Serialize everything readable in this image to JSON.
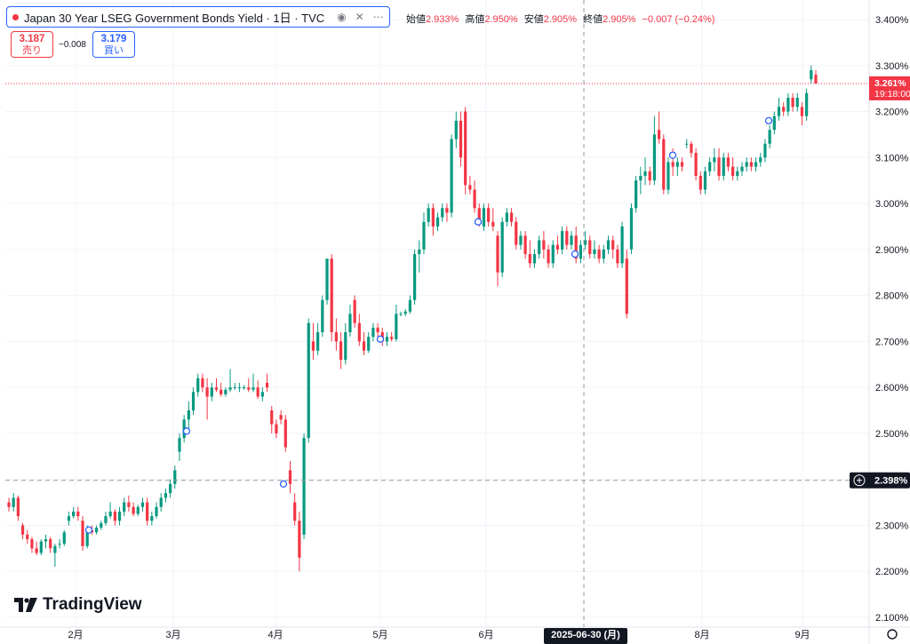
{
  "legend": {
    "title": "Japan 30 Year LSEG Government Bonds Yield · 1日 · TVC",
    "open_label": "始値",
    "open": "2.933%",
    "high_label": "高値",
    "high": "2.950%",
    "low_label": "安値",
    "low": "2.905%",
    "close_label": "終値",
    "close": "2.905%",
    "change": "−0.007 (−0.24%)",
    "icons": [
      "eye-icon",
      "close-icon",
      "more-icon"
    ]
  },
  "quotes": {
    "sell_value": "3.187",
    "sell_label": "売り",
    "spread": "−0.008",
    "buy_value": "3.179",
    "buy_label": "買い"
  },
  "branding": {
    "logo_text": "TradingView"
  },
  "colors": {
    "up": "#089981",
    "down": "#f23645",
    "accent": "#2962ff"
  },
  "chart_data": {
    "type": "candlestick",
    "title": "Japan 30 Year LSEG Government Bonds Yield · 1日 · TVC",
    "ylim": [
      2.1,
      3.42
    ],
    "y_ticks": [
      "3.400%",
      "3.300%",
      "3.200%",
      "3.100%",
      "3.000%",
      "2.900%",
      "2.800%",
      "2.700%",
      "2.600%",
      "2.500%",
      "2.400%",
      "2.300%",
      "2.200%",
      "2.100%"
    ],
    "y_tick_values": [
      3.4,
      3.3,
      3.2,
      3.1,
      3.0,
      2.9,
      2.8,
      2.7,
      2.6,
      2.5,
      2.4,
      2.3,
      2.2,
      2.1
    ],
    "x_labels": [
      {
        "label": "2月",
        "date": "2025-02-01"
      },
      {
        "label": "3月",
        "date": "2025-03-01"
      },
      {
        "label": "4月",
        "date": "2025-04-01"
      },
      {
        "label": "5月",
        "date": "2025-05-01"
      },
      {
        "label": "6月",
        "date": "2025-06-01"
      },
      {
        "label": "8月",
        "date": "2025-08-01"
      },
      {
        "label": "9月",
        "date": "2025-09-01"
      }
    ],
    "crosshair": {
      "date_label": "2025-06-30 (月)",
      "price_label": "2.398%",
      "price": 2.398
    },
    "last_price": {
      "label": "3.261%",
      "countdown": "19:18:00",
      "price": 3.261
    },
    "grid": true,
    "candles": [
      {
        "o": 2.35,
        "h": 2.36,
        "l": 2.33,
        "c": 2.34
      },
      {
        "o": 2.34,
        "h": 2.37,
        "l": 2.33,
        "c": 2.36
      },
      {
        "o": 2.36,
        "h": 2.365,
        "l": 2.31,
        "c": 2.32
      },
      {
        "o": 2.3,
        "h": 2.305,
        "l": 2.27,
        "c": 2.28
      },
      {
        "o": 2.28,
        "h": 2.29,
        "l": 2.26,
        "c": 2.27
      },
      {
        "o": 2.27,
        "h": 2.275,
        "l": 2.24,
        "c": 2.25
      },
      {
        "o": 2.25,
        "h": 2.265,
        "l": 2.235,
        "c": 2.24
      },
      {
        "o": 2.24,
        "h": 2.27,
        "l": 2.235,
        "c": 2.265
      },
      {
        "o": 2.265,
        "h": 2.28,
        "l": 2.25,
        "c": 2.27
      },
      {
        "o": 2.27,
        "h": 2.275,
        "l": 2.24,
        "c": 2.25
      },
      {
        "o": 2.24,
        "h": 2.26,
        "l": 2.21,
        "c": 2.255
      },
      {
        "o": 2.26,
        "h": 2.27,
        "l": 2.25,
        "c": 2.26
      },
      {
        "o": 2.26,
        "h": 2.29,
        "l": 2.255,
        "c": 2.285
      },
      {
        "o": 2.31,
        "h": 2.33,
        "l": 2.3,
        "c": 2.32
      },
      {
        "o": 2.32,
        "h": 2.34,
        "l": 2.315,
        "c": 2.33
      },
      {
        "o": 2.33,
        "h": 2.34,
        "l": 2.31,
        "c": 2.32
      },
      {
        "o": 2.31,
        "h": 2.32,
        "l": 2.245,
        "c": 2.255
      },
      {
        "o": 2.255,
        "h": 2.3,
        "l": 2.25,
        "c": 2.29
      },
      {
        "o": 2.29,
        "h": 2.3,
        "l": 2.28,
        "c": 2.285
      },
      {
        "o": 2.285,
        "h": 2.3,
        "l": 2.28,
        "c": 2.295
      },
      {
        "o": 2.295,
        "h": 2.31,
        "l": 2.29,
        "c": 2.305
      },
      {
        "o": 2.305,
        "h": 2.33,
        "l": 2.3,
        "c": 2.32
      },
      {
        "o": 2.32,
        "h": 2.35,
        "l": 2.315,
        "c": 2.33
      },
      {
        "o": 2.33,
        "h": 2.335,
        "l": 2.3,
        "c": 2.31
      },
      {
        "o": 2.31,
        "h": 2.34,
        "l": 2.3,
        "c": 2.33
      },
      {
        "o": 2.33,
        "h": 2.36,
        "l": 2.32,
        "c": 2.35
      },
      {
        "o": 2.35,
        "h": 2.365,
        "l": 2.33,
        "c": 2.34
      },
      {
        "o": 2.34,
        "h": 2.35,
        "l": 2.32,
        "c": 2.325
      },
      {
        "o": 2.325,
        "h": 2.345,
        "l": 2.32,
        "c": 2.34
      },
      {
        "o": 2.34,
        "h": 2.36,
        "l": 2.33,
        "c": 2.35
      },
      {
        "o": 2.35,
        "h": 2.36,
        "l": 2.3,
        "c": 2.31
      },
      {
        "o": 2.31,
        "h": 2.33,
        "l": 2.3,
        "c": 2.32
      },
      {
        "o": 2.32,
        "h": 2.35,
        "l": 2.315,
        "c": 2.34
      },
      {
        "o": 2.34,
        "h": 2.37,
        "l": 2.33,
        "c": 2.36
      },
      {
        "o": 2.36,
        "h": 2.38,
        "l": 2.35,
        "c": 2.37
      },
      {
        "o": 2.37,
        "h": 2.4,
        "l": 2.36,
        "c": 2.39
      },
      {
        "o": 2.39,
        "h": 2.43,
        "l": 2.38,
        "c": 2.42
      },
      {
        "o": 2.46,
        "h": 2.5,
        "l": 2.44,
        "c": 2.49
      },
      {
        "o": 2.49,
        "h": 2.54,
        "l": 2.48,
        "c": 2.53
      },
      {
        "o": 2.53,
        "h": 2.57,
        "l": 2.5,
        "c": 2.55
      },
      {
        "o": 2.55,
        "h": 2.6,
        "l": 2.54,
        "c": 2.59
      },
      {
        "o": 2.59,
        "h": 2.63,
        "l": 2.58,
        "c": 2.62
      },
      {
        "o": 2.62,
        "h": 2.63,
        "l": 2.59,
        "c": 2.6
      },
      {
        "o": 2.6,
        "h": 2.62,
        "l": 2.53,
        "c": 2.58
      },
      {
        "o": 2.58,
        "h": 2.61,
        "l": 2.57,
        "c": 2.6
      },
      {
        "o": 2.6,
        "h": 2.62,
        "l": 2.59,
        "c": 2.595
      },
      {
        "o": 2.595,
        "h": 2.61,
        "l": 2.58,
        "c": 2.585
      },
      {
        "o": 2.585,
        "h": 2.6,
        "l": 2.58,
        "c": 2.595
      },
      {
        "o": 2.595,
        "h": 2.64,
        "l": 2.59,
        "c": 2.6
      },
      {
        "o": 2.6,
        "h": 2.61,
        "l": 2.595,
        "c": 2.6
      },
      {
        "o": 2.6,
        "h": 2.61,
        "l": 2.59,
        "c": 2.6
      },
      {
        "o": 2.6,
        "h": 2.605,
        "l": 2.595,
        "c": 2.6
      },
      {
        "o": 2.6,
        "h": 2.62,
        "l": 2.59,
        "c": 2.595
      },
      {
        "o": 2.595,
        "h": 2.63,
        "l": 2.59,
        "c": 2.6
      },
      {
        "o": 2.6,
        "h": 2.615,
        "l": 2.575,
        "c": 2.58
      },
      {
        "o": 2.58,
        "h": 2.6,
        "l": 2.57,
        "c": 2.59
      },
      {
        "o": 2.61,
        "h": 2.63,
        "l": 2.59,
        "c": 2.6
      },
      {
        "o": 2.55,
        "h": 2.56,
        "l": 2.5,
        "c": 2.52
      },
      {
        "o": 2.52,
        "h": 2.53,
        "l": 2.49,
        "c": 2.5
      },
      {
        "o": 2.54,
        "h": 2.55,
        "l": 2.52,
        "c": 2.53
      },
      {
        "o": 2.53,
        "h": 2.54,
        "l": 2.46,
        "c": 2.47
      },
      {
        "o": 2.42,
        "h": 2.44,
        "l": 2.37,
        "c": 2.39
      },
      {
        "o": 2.35,
        "h": 2.37,
        "l": 2.3,
        "c": 2.31
      },
      {
        "o": 2.31,
        "h": 2.33,
        "l": 2.2,
        "c": 2.23
      },
      {
        "o": 2.28,
        "h": 2.5,
        "l": 2.27,
        "c": 2.49
      },
      {
        "o": 2.49,
        "h": 2.75,
        "l": 2.48,
        "c": 2.74
      },
      {
        "o": 2.7,
        "h": 2.74,
        "l": 2.66,
        "c": 2.68
      },
      {
        "o": 2.68,
        "h": 2.74,
        "l": 2.67,
        "c": 2.72
      },
      {
        "o": 2.72,
        "h": 2.8,
        "l": 2.71,
        "c": 2.79
      },
      {
        "o": 2.79,
        "h": 2.88,
        "l": 2.78,
        "c": 2.88
      },
      {
        "o": 2.88,
        "h": 2.89,
        "l": 2.7,
        "c": 2.72
      },
      {
        "o": 2.72,
        "h": 2.75,
        "l": 2.68,
        "c": 2.7
      },
      {
        "o": 2.7,
        "h": 2.72,
        "l": 2.64,
        "c": 2.66
      },
      {
        "o": 2.66,
        "h": 2.74,
        "l": 2.65,
        "c": 2.72
      },
      {
        "o": 2.72,
        "h": 2.78,
        "l": 2.71,
        "c": 2.76
      },
      {
        "o": 2.79,
        "h": 2.8,
        "l": 2.73,
        "c": 2.74
      },
      {
        "o": 2.74,
        "h": 2.76,
        "l": 2.69,
        "c": 2.7
      },
      {
        "o": 2.7,
        "h": 2.72,
        "l": 2.67,
        "c": 2.68
      },
      {
        "o": 2.68,
        "h": 2.72,
        "l": 2.675,
        "c": 2.71
      },
      {
        "o": 2.71,
        "h": 2.74,
        "l": 2.7,
        "c": 2.73
      },
      {
        "o": 2.73,
        "h": 2.74,
        "l": 2.705,
        "c": 2.72
      },
      {
        "o": 2.72,
        "h": 2.73,
        "l": 2.69,
        "c": 2.7
      },
      {
        "o": 2.7,
        "h": 2.72,
        "l": 2.69,
        "c": 2.71
      },
      {
        "o": 2.71,
        "h": 2.72,
        "l": 2.7,
        "c": 2.705
      },
      {
        "o": 2.705,
        "h": 2.78,
        "l": 2.7,
        "c": 2.76
      },
      {
        "o": 2.76,
        "h": 2.765,
        "l": 2.755,
        "c": 2.76
      },
      {
        "o": 2.76,
        "h": 2.77,
        "l": 2.755,
        "c": 2.765
      },
      {
        "o": 2.765,
        "h": 2.8,
        "l": 2.76,
        "c": 2.79
      },
      {
        "o": 2.79,
        "h": 2.9,
        "l": 2.78,
        "c": 2.89
      },
      {
        "o": 2.89,
        "h": 2.92,
        "l": 2.85,
        "c": 2.9
      },
      {
        "o": 2.9,
        "h": 2.98,
        "l": 2.89,
        "c": 2.96
      },
      {
        "o": 2.96,
        "h": 3.0,
        "l": 2.95,
        "c": 2.99
      },
      {
        "o": 2.99,
        "h": 3.0,
        "l": 2.93,
        "c": 2.95
      },
      {
        "o": 2.95,
        "h": 2.98,
        "l": 2.94,
        "c": 2.97
      },
      {
        "o": 2.97,
        "h": 3.0,
        "l": 2.96,
        "c": 2.99
      },
      {
        "o": 2.99,
        "h": 3.0,
        "l": 2.96,
        "c": 2.98
      },
      {
        "o": 2.98,
        "h": 3.15,
        "l": 2.97,
        "c": 3.14
      },
      {
        "o": 3.14,
        "h": 3.2,
        "l": 3.12,
        "c": 3.18
      },
      {
        "o": 3.18,
        "h": 3.2,
        "l": 3.08,
        "c": 3.1
      },
      {
        "o": 3.2,
        "h": 3.21,
        "l": 3.02,
        "c": 3.04
      },
      {
        "o": 3.04,
        "h": 3.06,
        "l": 3.02,
        "c": 3.03
      },
      {
        "o": 3.03,
        "h": 3.05,
        "l": 2.98,
        "c": 2.99
      },
      {
        "o": 2.99,
        "h": 3.0,
        "l": 2.95,
        "c": 2.96
      },
      {
        "o": 2.95,
        "h": 3.0,
        "l": 2.94,
        "c": 2.99
      },
      {
        "o": 2.99,
        "h": 3.0,
        "l": 2.95,
        "c": 2.96
      },
      {
        "o": 2.96,
        "h": 2.99,
        "l": 2.94,
        "c": 2.95
      },
      {
        "o": 2.93,
        "h": 2.94,
        "l": 2.82,
        "c": 2.85
      },
      {
        "o": 2.85,
        "h": 2.97,
        "l": 2.84,
        "c": 2.96
      },
      {
        "o": 2.96,
        "h": 2.99,
        "l": 2.95,
        "c": 2.98
      },
      {
        "o": 2.98,
        "h": 2.99,
        "l": 2.95,
        "c": 2.96
      },
      {
        "o": 2.96,
        "h": 2.97,
        "l": 2.9,
        "c": 2.91
      },
      {
        "o": 2.91,
        "h": 2.94,
        "l": 2.9,
        "c": 2.93
      },
      {
        "o": 2.93,
        "h": 2.94,
        "l": 2.88,
        "c": 2.89
      },
      {
        "o": 2.89,
        "h": 2.92,
        "l": 2.86,
        "c": 2.87
      },
      {
        "o": 2.87,
        "h": 2.9,
        "l": 2.86,
        "c": 2.89
      },
      {
        "o": 2.89,
        "h": 2.93,
        "l": 2.88,
        "c": 2.92
      },
      {
        "o": 2.92,
        "h": 2.94,
        "l": 2.88,
        "c": 2.9
      },
      {
        "o": 2.9,
        "h": 2.91,
        "l": 2.86,
        "c": 2.87
      },
      {
        "o": 2.87,
        "h": 2.92,
        "l": 2.86,
        "c": 2.91
      },
      {
        "o": 2.91,
        "h": 2.93,
        "l": 2.89,
        "c": 2.9
      },
      {
        "o": 2.9,
        "h": 2.95,
        "l": 2.89,
        "c": 2.94
      },
      {
        "o": 2.94,
        "h": 2.95,
        "l": 2.9,
        "c": 2.91
      },
      {
        "o": 2.91,
        "h": 2.94,
        "l": 2.9,
        "c": 2.93
      },
      {
        "o": 2.93,
        "h": 2.95,
        "l": 2.87,
        "c": 2.88
      },
      {
        "o": 2.88,
        "h": 2.92,
        "l": 2.87,
        "c": 2.91
      },
      {
        "o": 2.91,
        "h": 2.94,
        "l": 2.9,
        "c": 2.92
      },
      {
        "o": 2.92,
        "h": 2.93,
        "l": 2.88,
        "c": 2.89
      },
      {
        "o": 2.89,
        "h": 2.92,
        "l": 2.88,
        "c": 2.9
      },
      {
        "o": 2.9,
        "h": 2.91,
        "l": 2.87,
        "c": 2.88
      },
      {
        "o": 2.88,
        "h": 2.91,
        "l": 2.87,
        "c": 2.9
      },
      {
        "o": 2.9,
        "h": 2.93,
        "l": 2.89,
        "c": 2.92
      },
      {
        "o": 2.92,
        "h": 2.93,
        "l": 2.88,
        "c": 2.9
      },
      {
        "o": 2.9,
        "h": 2.91,
        "l": 2.86,
        "c": 2.87
      },
      {
        "o": 2.87,
        "h": 2.96,
        "l": 2.86,
        "c": 2.95
      },
      {
        "o": 2.88,
        "h": 2.9,
        "l": 2.75,
        "c": 2.76
      },
      {
        "o": 2.9,
        "h": 3.0,
        "l": 2.89,
        "c": 2.99
      },
      {
        "o": 2.99,
        "h": 3.06,
        "l": 2.98,
        "c": 3.05
      },
      {
        "o": 3.05,
        "h": 3.08,
        "l": 3.02,
        "c": 3.06
      },
      {
        "o": 3.06,
        "h": 3.1,
        "l": 3.04,
        "c": 3.07
      },
      {
        "o": 3.07,
        "h": 3.08,
        "l": 3.04,
        "c": 3.05
      },
      {
        "o": 3.05,
        "h": 3.19,
        "l": 3.04,
        "c": 3.15
      },
      {
        "o": 3.16,
        "h": 3.2,
        "l": 3.13,
        "c": 3.14
      },
      {
        "o": 3.14,
        "h": 3.15,
        "l": 3.02,
        "c": 3.03
      },
      {
        "o": 3.03,
        "h": 3.1,
        "l": 3.02,
        "c": 3.09
      },
      {
        "o": 3.09,
        "h": 3.12,
        "l": 3.06,
        "c": 3.08
      },
      {
        "o": 3.08,
        "h": 3.1,
        "l": 3.06,
        "c": 3.09
      },
      {
        "o": 3.09,
        "h": 3.1,
        "l": 3.07,
        "c": 3.08
      },
      {
        "o": 3.13,
        "h": 3.14,
        "l": 3.12,
        "c": 3.13
      },
      {
        "o": 3.13,
        "h": 3.135,
        "l": 3.1,
        "c": 3.11
      },
      {
        "o": 3.11,
        "h": 3.12,
        "l": 3.05,
        "c": 3.06
      },
      {
        "o": 3.06,
        "h": 3.07,
        "l": 3.02,
        "c": 3.03
      },
      {
        "o": 3.03,
        "h": 3.08,
        "l": 3.02,
        "c": 3.07
      },
      {
        "o": 3.07,
        "h": 3.1,
        "l": 3.06,
        "c": 3.09
      },
      {
        "o": 3.09,
        "h": 3.12,
        "l": 3.07,
        "c": 3.1
      },
      {
        "o": 3.1,
        "h": 3.12,
        "l": 3.05,
        "c": 3.06
      },
      {
        "o": 3.06,
        "h": 3.11,
        "l": 3.05,
        "c": 3.1
      },
      {
        "o": 3.1,
        "h": 3.11,
        "l": 3.07,
        "c": 3.08
      },
      {
        "o": 3.08,
        "h": 3.1,
        "l": 3.05,
        "c": 3.06
      },
      {
        "o": 3.06,
        "h": 3.08,
        "l": 3.05,
        "c": 3.07
      },
      {
        "o": 3.07,
        "h": 3.09,
        "l": 3.06,
        "c": 3.08
      },
      {
        "o": 3.08,
        "h": 3.1,
        "l": 3.07,
        "c": 3.09
      },
      {
        "o": 3.09,
        "h": 3.1,
        "l": 3.07,
        "c": 3.08
      },
      {
        "o": 3.08,
        "h": 3.1,
        "l": 3.07,
        "c": 3.09
      },
      {
        "o": 3.09,
        "h": 3.11,
        "l": 3.08,
        "c": 3.1
      },
      {
        "o": 3.1,
        "h": 3.14,
        "l": 3.09,
        "c": 3.13
      },
      {
        "o": 3.13,
        "h": 3.17,
        "l": 3.12,
        "c": 3.16
      },
      {
        "o": 3.16,
        "h": 3.2,
        "l": 3.15,
        "c": 3.19
      },
      {
        "o": 3.19,
        "h": 3.23,
        "l": 3.18,
        "c": 3.21
      },
      {
        "o": 3.21,
        "h": 3.22,
        "l": 3.19,
        "c": 3.2
      },
      {
        "o": 3.2,
        "h": 3.24,
        "l": 3.19,
        "c": 3.23
      },
      {
        "o": 3.23,
        "h": 3.24,
        "l": 3.2,
        "c": 3.21
      },
      {
        "o": 3.21,
        "h": 3.24,
        "l": 3.2,
        "c": 3.23
      },
      {
        "o": 3.21,
        "h": 3.22,
        "l": 3.17,
        "c": 3.19
      },
      {
        "o": 3.19,
        "h": 3.25,
        "l": 3.18,
        "c": 3.24
      },
      {
        "o": 3.27,
        "h": 3.3,
        "l": 3.26,
        "c": 3.29
      },
      {
        "o": 3.28,
        "h": 3.29,
        "l": 3.26,
        "c": 3.261
      }
    ]
  }
}
